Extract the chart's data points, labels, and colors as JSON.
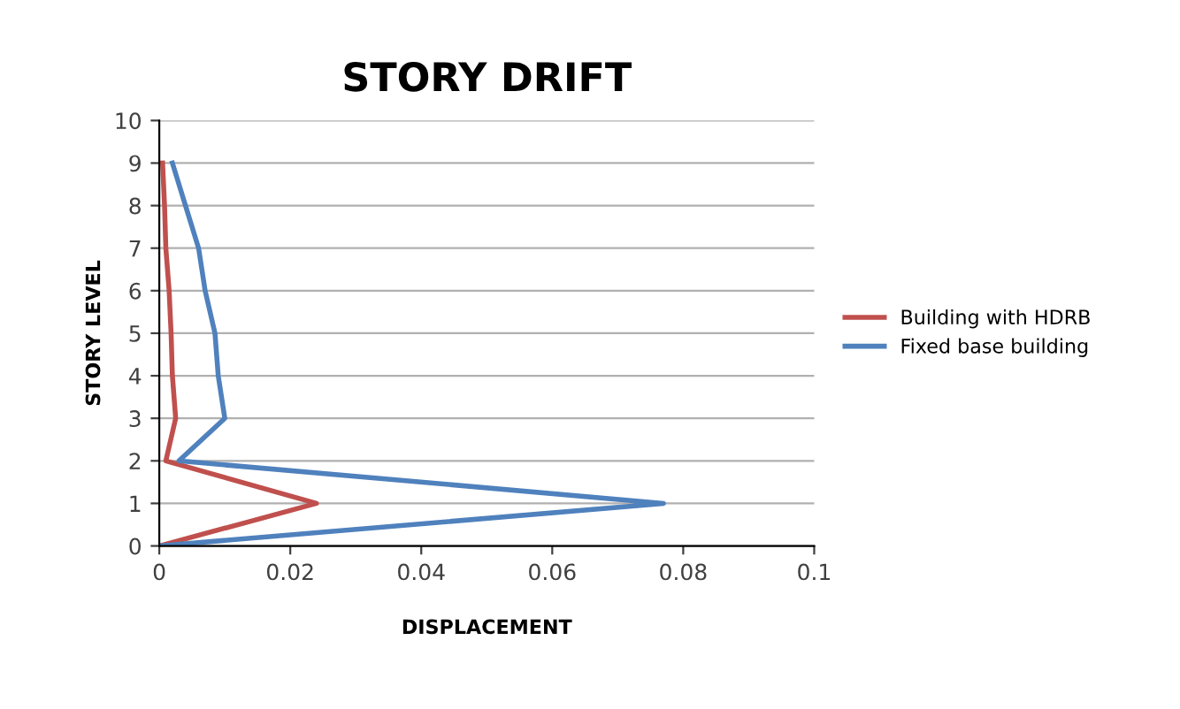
{
  "chart_data": {
    "type": "line",
    "title": "STORY DRIFT",
    "xlabel": "DISPLACEMENT",
    "ylabel": "STORY LEVEL",
    "xlim": [
      0,
      0.1
    ],
    "xticks": [
      0,
      0.02,
      0.04,
      0.06,
      0.08,
      0.1
    ],
    "ylim": [
      0,
      10
    ],
    "yticks": [
      0,
      1,
      2,
      3,
      4,
      5,
      6,
      7,
      8,
      9,
      10
    ],
    "grid": "y",
    "legend": "right",
    "marker": "none",
    "line_style": "solid",
    "series": [
      {
        "name": "Building with HDRB",
        "color": "#c0504d",
        "x": [
          0,
          0.024,
          0.001,
          0.0025,
          0.002,
          0.0018,
          0.0015,
          0.001,
          0.0008,
          0.0005
        ],
        "values": [
          0,
          1,
          2,
          3,
          4,
          5,
          6,
          7,
          8,
          9
        ]
      },
      {
        "name": "Fixed base building",
        "color": "#4f81bd",
        "x": [
          0,
          0.077,
          0.003,
          0.01,
          0.009,
          0.0085,
          0.007,
          0.006,
          0.004,
          0.002
        ],
        "values": [
          0,
          1,
          2,
          3,
          4,
          5,
          6,
          7,
          8,
          9
        ]
      }
    ]
  }
}
